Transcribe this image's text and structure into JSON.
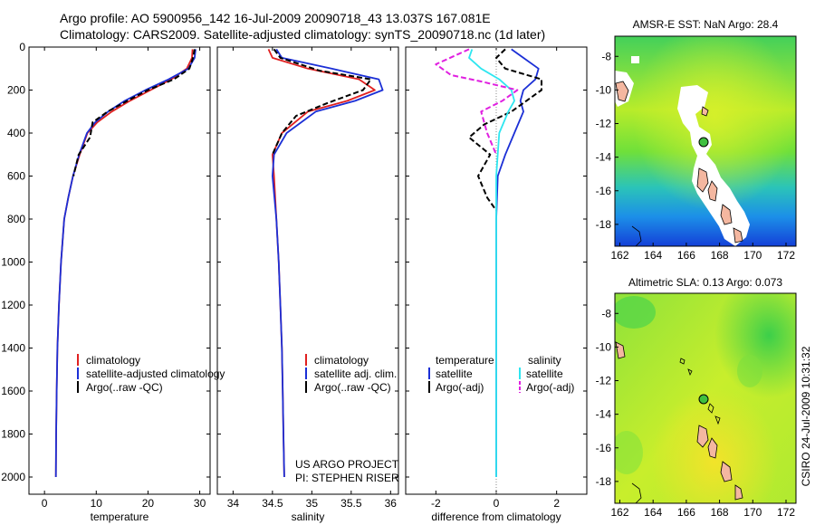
{
  "header": {
    "line1": "Argo profile: AO 5900956_142 16-Jul-2009 20090718_43 13.037S 167.081E",
    "line2": "Climatology: CARS2009. Satellite-adjusted climatology: synTS_20090718.nc (1d later)"
  },
  "side_label": "CSIRO 24-Jul-2009 10:31:32",
  "project": {
    "line1": "US ARGO PROJECT",
    "line2": "PI: STEPHEN RISER"
  },
  "colors": {
    "red": "#e02020",
    "blue": "#1b2fd6",
    "black": "#000000",
    "cyan": "#2ee6f0",
    "magenta": "#e020e0"
  },
  "chart_data": [
    {
      "type": "line",
      "id": "temp",
      "title": "",
      "xlabel": "temperature",
      "ylabel": "",
      "xlim": [
        -3,
        32
      ],
      "ylim": [
        0,
        2080
      ],
      "y_inverted": true,
      "xticks": [
        0,
        10,
        20,
        30
      ],
      "yticks": [
        0,
        200,
        400,
        600,
        800,
        1000,
        1200,
        1400,
        1600,
        1800,
        2000
      ],
      "legend": [
        "climatology",
        "satellite-adjusted climatology",
        "Argo(..raw -QC)"
      ],
      "series": [
        {
          "name": "climatology",
          "color": "#e02020",
          "dash": "",
          "x": [
            28.6,
            28.5,
            27.5,
            24.5,
            20.5,
            16.5,
            13,
            10.2,
            8.3,
            6.8,
            5.5,
            4.6,
            3.8,
            3.2,
            2.8,
            2.5,
            2.35,
            2.25,
            2.2
          ],
          "y": [
            10,
            50,
            100,
            150,
            200,
            250,
            300,
            350,
            400,
            500,
            600,
            700,
            800,
            1000,
            1200,
            1400,
            1600,
            1800,
            2000
          ]
        },
        {
          "name": "satellite-adjusted climatology",
          "color": "#1b2fd6",
          "dash": "",
          "x": [
            29.2,
            29.0,
            27.8,
            24,
            19.5,
            15.5,
            12.3,
            9.8,
            8.2,
            6.7,
            5.5,
            4.6,
            3.8,
            3.2,
            2.8,
            2.5,
            2.35,
            2.25,
            2.2
          ],
          "y": [
            10,
            50,
            100,
            150,
            200,
            250,
            300,
            350,
            400,
            500,
            600,
            700,
            800,
            1000,
            1200,
            1400,
            1600,
            1800,
            2000
          ]
        },
        {
          "name": "Argo(..raw -QC)",
          "color": "#000000",
          "dash": "6,3",
          "x": [
            29.0,
            28.7,
            28.0,
            25,
            20,
            16,
            12.2,
            9.3,
            8.8,
            6.6,
            5.6
          ],
          "y": [
            10,
            50,
            100,
            150,
            200,
            250,
            300,
            350,
            420,
            500,
            600
          ]
        }
      ]
    },
    {
      "type": "line",
      "id": "sal",
      "title": "",
      "xlabel": "salinity",
      "ylabel": "",
      "xlim": [
        33.8,
        36.1
      ],
      "ylim": [
        0,
        2080
      ],
      "y_inverted": true,
      "xticks": [
        34,
        34.5,
        35,
        35.5,
        36
      ],
      "yticks": [
        0,
        200,
        400,
        600,
        800,
        1000,
        1200,
        1400,
        1600,
        1800,
        2000
      ],
      "legend": [
        "climatology",
        "satellite adj. clim.",
        "Argo(..raw -QC)"
      ],
      "series": [
        {
          "name": "climatology",
          "color": "#e02020",
          "dash": "",
          "x": [
            34.45,
            34.5,
            34.95,
            35.6,
            35.8,
            35.45,
            34.95,
            34.62,
            34.5,
            34.52,
            34.55,
            34.58,
            34.6,
            34.62,
            34.63,
            34.64,
            34.65
          ],
          "y": [
            10,
            50,
            100,
            150,
            200,
            250,
            300,
            400,
            500,
            600,
            800,
            1000,
            1200,
            1400,
            1600,
            1800,
            2000
          ]
        },
        {
          "name": "satellite adj. clim.",
          "color": "#1b2fd6",
          "dash": "",
          "x": [
            34.55,
            34.62,
            35.25,
            35.85,
            35.9,
            35.55,
            35.05,
            34.68,
            34.52,
            34.5,
            34.55,
            34.58,
            34.6,
            34.62,
            34.63,
            34.64,
            34.65
          ],
          "y": [
            10,
            50,
            100,
            150,
            200,
            250,
            300,
            400,
            500,
            600,
            800,
            1000,
            1200,
            1400,
            1600,
            1800,
            2000
          ]
        },
        {
          "name": "Argo(..raw -QC)",
          "color": "#000000",
          "dash": "6,3",
          "x": [
            34.52,
            34.6,
            35.1,
            35.75,
            35.65,
            35.2,
            34.8,
            34.62,
            34.5
          ],
          "y": [
            10,
            50,
            110,
            150,
            200,
            260,
            320,
            400,
            500
          ]
        }
      ]
    },
    {
      "type": "line",
      "id": "diff",
      "title": "",
      "xlabel": "difference from climatology",
      "ylabel": "",
      "xlim": [
        -3,
        3
      ],
      "ylim": [
        0,
        2080
      ],
      "y_inverted": true,
      "xticks": [
        -2,
        0,
        2
      ],
      "yticks": [
        0,
        200,
        400,
        600,
        800,
        1000,
        1200,
        1400,
        1600,
        1800,
        2000
      ],
      "legend_headers": [
        "temperature",
        "salinity"
      ],
      "legend": [
        "satellite",
        "Argo(-adj)",
        "satellite",
        "Argo(-adj)"
      ],
      "series": [
        {
          "name": "temperature satellite",
          "color": "#1b2fd6",
          "dash": "",
          "x": [
            0.5,
            0.9,
            1.4,
            1.3,
            0.9,
            0.8,
            0.9,
            0.6,
            0.3,
            0.05,
            0,
            0,
            0,
            0,
            0
          ],
          "y": [
            10,
            50,
            100,
            150,
            200,
            250,
            300,
            400,
            500,
            600,
            800,
            1000,
            1400,
            1800,
            2000
          ]
        },
        {
          "name": "temperature Argo(-adj)",
          "color": "#000000",
          "dash": "6,3",
          "x": [
            0.3,
            0.0,
            0.3,
            1.5,
            1.5,
            1.0,
            0.5,
            -0.4,
            -0.9,
            -0.2,
            -0.6,
            -0.3,
            0
          ],
          "y": [
            10,
            50,
            100,
            150,
            200,
            250,
            300,
            360,
            420,
            500,
            600,
            700,
            760
          ]
        },
        {
          "name": "salinity satellite",
          "color": "#2ee6f0",
          "dash": "",
          "x": [
            -0.8,
            -0.9,
            -0.5,
            0.1,
            0.5,
            0.6,
            0.4,
            0.1,
            0,
            0,
            0,
            0,
            0
          ],
          "y": [
            10,
            50,
            100,
            150,
            200,
            250,
            300,
            400,
            600,
            800,
            1000,
            1400,
            2000
          ]
        },
        {
          "name": "salinity Argo(-adj)",
          "color": "#e020e0",
          "dash": "6,3",
          "x": [
            -0.9,
            -2.0,
            -1.5,
            -0.5,
            0.7,
            0.2,
            -0.5,
            -0.3,
            0.0
          ],
          "y": [
            10,
            80,
            130,
            160,
            200,
            250,
            300,
            400,
            500
          ]
        }
      ]
    }
  ],
  "maps": [
    {
      "id": "sst",
      "title": "AMSR-E SST: NaN Argo: 28.4",
      "xticks": [
        162,
        164,
        166,
        168,
        170,
        172
      ],
      "yticks": [
        -8,
        -10,
        -12,
        -14,
        -16,
        -18
      ],
      "xlim": [
        161.7,
        172.6
      ],
      "ylim": [
        -19.3,
        -6.8
      ],
      "marker": [
        167.08,
        -13.04
      ]
    },
    {
      "id": "sla",
      "title": "Altimetric SLA: 0.13 Argo: 0.073",
      "xticks": [
        162,
        164,
        166,
        168,
        170,
        172
      ],
      "yticks": [
        -8,
        -10,
        -12,
        -14,
        -16,
        -18
      ],
      "xlim": [
        161.7,
        172.6
      ],
      "ylim": [
        -19.3,
        -6.8
      ],
      "marker": [
        167.08,
        -13.04
      ]
    }
  ]
}
